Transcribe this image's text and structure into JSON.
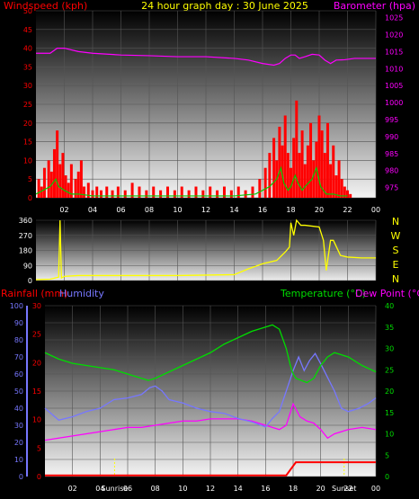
{
  "header": {
    "left_label": "Windspeed (kph)",
    "title": "24 hour graph day : 30 June 2025",
    "right_label": "Barometer (hpa)"
  },
  "compass": [
    "N",
    "W",
    "S",
    "E",
    "N"
  ],
  "bottom_labels": {
    "rainfall": "Rainfall (mm)",
    "humidity": "Humidity",
    "temperature": "Temperature (°C)",
    "dewpoint": "Dew Point (°C)",
    "sunrise": "Sunrise",
    "sunset": "Sunset"
  },
  "colors": {
    "wind_axis": "#ff0000",
    "baro_axis": "#ff00ff",
    "title": "#ffff00",
    "wind_bars": "#ff0000",
    "gust": "#00cc00",
    "direction": "#ffff00",
    "humidity": "#7777ff",
    "temperature": "#00dd00",
    "dewpoint": "#ff00ff",
    "rainfall": "#ff0000"
  },
  "chart_data": [
    {
      "type": "bar",
      "name": "wind",
      "x_ticks": [
        "02",
        "04",
        "06",
        "08",
        "10",
        "12",
        "14",
        "16",
        "18",
        "20",
        "22",
        "00"
      ],
      "y_left_ticks": [
        0,
        5,
        10,
        15,
        20,
        25,
        30,
        35,
        40,
        45,
        50
      ],
      "y_right_ticks": [
        975,
        980,
        985,
        990,
        995,
        1000,
        1005,
        1010,
        1015,
        1020,
        1025
      ],
      "ylim_left": [
        0,
        50
      ],
      "ylim_right": [
        972,
        1027
      ],
      "windspeed": [
        [
          0.2,
          5
        ],
        [
          0.4,
          3
        ],
        [
          0.6,
          8
        ],
        [
          0.9,
          10
        ],
        [
          1.1,
          7
        ],
        [
          1.3,
          13
        ],
        [
          1.5,
          18
        ],
        [
          1.7,
          9
        ],
        [
          1.9,
          12
        ],
        [
          2.1,
          6
        ],
        [
          2.3,
          4
        ],
        [
          2.5,
          9
        ],
        [
          2.8,
          5
        ],
        [
          3.0,
          7
        ],
        [
          3.2,
          10
        ],
        [
          3.4,
          3
        ],
        [
          3.7,
          4
        ],
        [
          4.0,
          2
        ],
        [
          4.3,
          3
        ],
        [
          4.6,
          2
        ],
        [
          5.0,
          3
        ],
        [
          5.4,
          2
        ],
        [
          5.8,
          3
        ],
        [
          6.3,
          2
        ],
        [
          6.8,
          4
        ],
        [
          7.3,
          3
        ],
        [
          7.8,
          2
        ],
        [
          8.3,
          3
        ],
        [
          8.8,
          2
        ],
        [
          9.3,
          3
        ],
        [
          9.8,
          2
        ],
        [
          10.3,
          3
        ],
        [
          10.8,
          2
        ],
        [
          11.3,
          3
        ],
        [
          11.8,
          2
        ],
        [
          12.3,
          3
        ],
        [
          12.8,
          2
        ],
        [
          13.3,
          3
        ],
        [
          13.8,
          2
        ],
        [
          14.3,
          3
        ],
        [
          14.8,
          2
        ],
        [
          15.3,
          3
        ],
        [
          15.8,
          5
        ],
        [
          16.2,
          8
        ],
        [
          16.5,
          12
        ],
        [
          16.8,
          16
        ],
        [
          17.0,
          10
        ],
        [
          17.2,
          19
        ],
        [
          17.4,
          14
        ],
        [
          17.6,
          22
        ],
        [
          17.8,
          12
        ],
        [
          18.0,
          8
        ],
        [
          18.2,
          16
        ],
        [
          18.4,
          26
        ],
        [
          18.6,
          12
        ],
        [
          18.8,
          18
        ],
        [
          19.0,
          9
        ],
        [
          19.2,
          14
        ],
        [
          19.4,
          20
        ],
        [
          19.6,
          10
        ],
        [
          19.8,
          15
        ],
        [
          20.0,
          22
        ],
        [
          20.2,
          18
        ],
        [
          20.4,
          12
        ],
        [
          20.6,
          20
        ],
        [
          20.8,
          9
        ],
        [
          21.0,
          14
        ],
        [
          21.2,
          6
        ],
        [
          21.4,
          10
        ],
        [
          21.6,
          5
        ],
        [
          21.8,
          3
        ],
        [
          22.0,
          2
        ],
        [
          22.2,
          1
        ]
      ],
      "gust": [
        [
          0,
          1
        ],
        [
          0.5,
          2
        ],
        [
          1.0,
          3
        ],
        [
          1.4,
          5
        ],
        [
          1.6,
          3
        ],
        [
          2.0,
          2
        ],
        [
          2.5,
          1
        ],
        [
          3.0,
          1
        ],
        [
          4,
          0.5
        ],
        [
          6,
          0.5
        ],
        [
          8,
          0.5
        ],
        [
          10,
          0.5
        ],
        [
          12,
          0.5
        ],
        [
          14,
          0.5
        ],
        [
          15.5,
          1
        ],
        [
          16,
          2
        ],
        [
          16.5,
          3
        ],
        [
          17,
          5
        ],
        [
          17.3,
          8
        ],
        [
          17.5,
          4
        ],
        [
          17.8,
          2
        ],
        [
          18,
          3
        ],
        [
          18.3,
          6
        ],
        [
          18.5,
          4
        ],
        [
          18.8,
          2
        ],
        [
          19,
          3
        ],
        [
          19.5,
          5
        ],
        [
          19.8,
          8
        ],
        [
          20.1,
          3
        ],
        [
          20.5,
          1
        ],
        [
          21,
          1
        ],
        [
          21.5,
          0.5
        ],
        [
          22,
          0.5
        ]
      ],
      "barometer": [
        [
          0,
          1014.5
        ],
        [
          1,
          1014.5
        ],
        [
          1.5,
          1016
        ],
        [
          2,
          1016
        ],
        [
          3,
          1015
        ],
        [
          4,
          1014.5
        ],
        [
          6,
          1014
        ],
        [
          8,
          1013.8
        ],
        [
          10,
          1013.5
        ],
        [
          12,
          1013.5
        ],
        [
          14,
          1013
        ],
        [
          15,
          1012.5
        ],
        [
          16,
          1011.5
        ],
        [
          16.8,
          1011
        ],
        [
          17.2,
          1011.5
        ],
        [
          17.6,
          1013
        ],
        [
          18,
          1014
        ],
        [
          18.3,
          1014
        ],
        [
          18.6,
          1013
        ],
        [
          19,
          1013.5
        ],
        [
          19.5,
          1014.2
        ],
        [
          20,
          1014
        ],
        [
          20.4,
          1012.5
        ],
        [
          20.8,
          1011.5
        ],
        [
          21.2,
          1012.5
        ],
        [
          21.8,
          1012.6
        ],
        [
          22.5,
          1013
        ],
        [
          24,
          1013
        ]
      ]
    },
    {
      "type": "line",
      "name": "wind-direction",
      "y_ticks": [
        0,
        90,
        180,
        270,
        360
      ],
      "ylim": [
        0,
        360
      ],
      "direction": [
        [
          0,
          5
        ],
        [
          1,
          8
        ],
        [
          1.6,
          20
        ],
        [
          1.7,
          360
        ],
        [
          1.8,
          15
        ],
        [
          2,
          25
        ],
        [
          3,
          30
        ],
        [
          6,
          30
        ],
        [
          10,
          30
        ],
        [
          14,
          35
        ],
        [
          15,
          70
        ],
        [
          16,
          100
        ],
        [
          17,
          120
        ],
        [
          17.6,
          170
        ],
        [
          17.9,
          200
        ],
        [
          18,
          345
        ],
        [
          18.2,
          270
        ],
        [
          18.4,
          360
        ],
        [
          18.7,
          330
        ],
        [
          19,
          330
        ],
        [
          20,
          320
        ],
        [
          20.3,
          240
        ],
        [
          20.5,
          60
        ],
        [
          20.8,
          240
        ],
        [
          21,
          240
        ],
        [
          21.5,
          150
        ],
        [
          22,
          140
        ],
        [
          23,
          135
        ],
        [
          24,
          135
        ]
      ]
    },
    {
      "type": "line",
      "name": "temperature-humidity",
      "x_ticks": [
        "02",
        "04",
        "06",
        "08",
        "10",
        "12",
        "14",
        "16",
        "18",
        "20",
        "22",
        "00"
      ],
      "y_left_ticks": [
        0,
        10,
        20,
        30,
        40,
        50,
        60,
        70,
        80,
        90,
        100
      ],
      "rain_ticks": [
        0,
        5,
        10,
        15,
        20,
        25,
        30
      ],
      "y_right_ticks": [
        0,
        5,
        10,
        15,
        20,
        25,
        30,
        35,
        40
      ],
      "humidity": [
        [
          0,
          40
        ],
        [
          1,
          33
        ],
        [
          2,
          35
        ],
        [
          3,
          38
        ],
        [
          4,
          40
        ],
        [
          5,
          45
        ],
        [
          6,
          46
        ],
        [
          7,
          48
        ],
        [
          7.6,
          52
        ],
        [
          8,
          53
        ],
        [
          8.5,
          50
        ],
        [
          9,
          45
        ],
        [
          10,
          43
        ],
        [
          11,
          40
        ],
        [
          12,
          38
        ],
        [
          13,
          37
        ],
        [
          14,
          34
        ],
        [
          15,
          32
        ],
        [
          16,
          29
        ],
        [
          16.5,
          34
        ],
        [
          17,
          38
        ],
        [
          17.5,
          50
        ],
        [
          18,
          62
        ],
        [
          18.4,
          70
        ],
        [
          18.8,
          62
        ],
        [
          19.2,
          68
        ],
        [
          19.6,
          72
        ],
        [
          20,
          66
        ],
        [
          20.5,
          58
        ],
        [
          21,
          50
        ],
        [
          21.5,
          40
        ],
        [
          22,
          38
        ],
        [
          22.8,
          40
        ],
        [
          23.5,
          43
        ],
        [
          24,
          46
        ]
      ],
      "temperature": [
        [
          0,
          29
        ],
        [
          1,
          27.5
        ],
        [
          2,
          26.5
        ],
        [
          3,
          26
        ],
        [
          4,
          25.5
        ],
        [
          5,
          25
        ],
        [
          6,
          24
        ],
        [
          7,
          23
        ],
        [
          7.5,
          22.5
        ],
        [
          8,
          23
        ],
        [
          9,
          24.5
        ],
        [
          10,
          26
        ],
        [
          11,
          27.5
        ],
        [
          12,
          29
        ],
        [
          13,
          31
        ],
        [
          14,
          32.5
        ],
        [
          15,
          34
        ],
        [
          16,
          35
        ],
        [
          16.5,
          35.5
        ],
        [
          17,
          34.5
        ],
        [
          17.5,
          30
        ],
        [
          17.8,
          26
        ],
        [
          18,
          24
        ],
        [
          18.2,
          23
        ],
        [
          19,
          22
        ],
        [
          19.5,
          23
        ],
        [
          20,
          26
        ],
        [
          20.5,
          28
        ],
        [
          21,
          29
        ],
        [
          22,
          28
        ],
        [
          23,
          26
        ],
        [
          24,
          24.5
        ]
      ],
      "dewpoint": [
        [
          0,
          8.5
        ],
        [
          1,
          9
        ],
        [
          2,
          9.5
        ],
        [
          3,
          10
        ],
        [
          4,
          10.5
        ],
        [
          5,
          11
        ],
        [
          6,
          11.5
        ],
        [
          7,
          11.5
        ],
        [
          8,
          12
        ],
        [
          9,
          12.5
        ],
        [
          10,
          13
        ],
        [
          11,
          13
        ],
        [
          12,
          13.5
        ],
        [
          13,
          13.5
        ],
        [
          14,
          13.5
        ],
        [
          15,
          13
        ],
        [
          16,
          12
        ],
        [
          17,
          11
        ],
        [
          17.5,
          12
        ],
        [
          18,
          17
        ],
        [
          18.5,
          14
        ],
        [
          19,
          13
        ],
        [
          19.5,
          12.5
        ],
        [
          20,
          11
        ],
        [
          20.5,
          9
        ],
        [
          21,
          10
        ],
        [
          22,
          11
        ],
        [
          23,
          11.5
        ],
        [
          24,
          11
        ]
      ],
      "rainfall": [
        [
          0,
          0.2
        ],
        [
          17.5,
          0.2
        ],
        [
          18.2,
          2.5
        ],
        [
          24,
          2.5
        ]
      ],
      "sunrise_hour": 5.05,
      "sunset_hour": 21.7
    }
  ]
}
